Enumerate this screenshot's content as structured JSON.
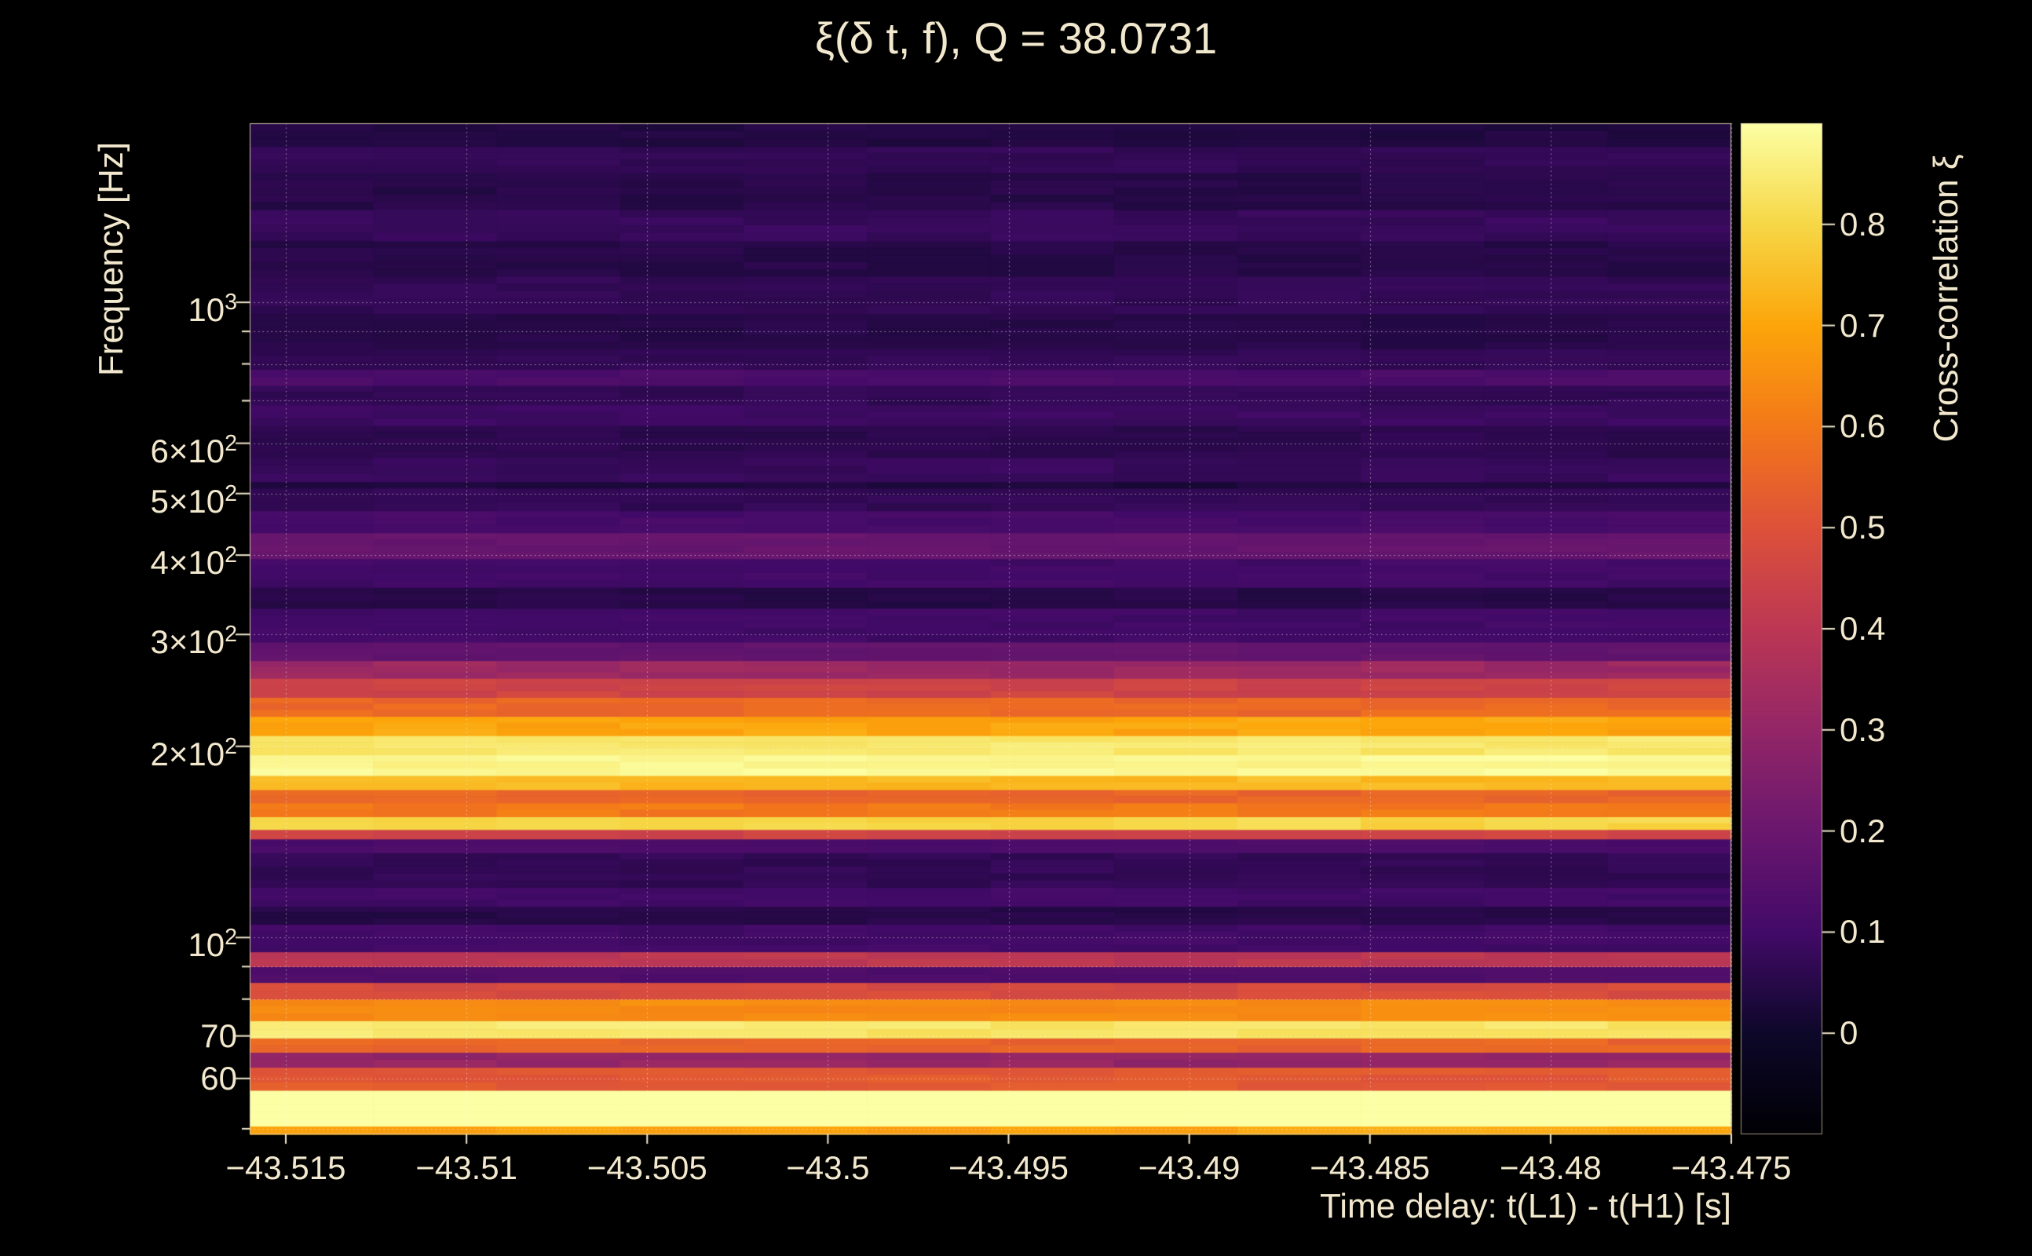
{
  "page": {
    "background": "#000000"
  },
  "colors": {
    "text": "#f2e8cd",
    "grid": "rgba(255,255,255,0.55)",
    "frame": "rgba(222,210,180,0.9)"
  },
  "chart_data": {
    "type": "heatmap",
    "title": "ξ(δ t, f), Q = 38.0731",
    "Q": 38.0731,
    "xlabel": "Time delay: t(L1) - t(H1) [s]",
    "ylabel": "Frequency [Hz]",
    "colorbar_label": "Cross-correlation ξ",
    "x_range": [
      -43.516,
      -43.475
    ],
    "y_range_hz": [
      49,
      1914
    ],
    "y_scale": "log",
    "value_range": [
      -0.1,
      0.9
    ],
    "grid": "dotted",
    "legend_position": "colorbar-right",
    "x_ticks": [
      {
        "value": -43.515,
        "label": "−43.515"
      },
      {
        "value": -43.51,
        "label": "−43.51"
      },
      {
        "value": -43.505,
        "label": "−43.505"
      },
      {
        "value": -43.5,
        "label": "−43.5"
      },
      {
        "value": -43.495,
        "label": "−43.495"
      },
      {
        "value": -43.49,
        "label": "−43.49"
      },
      {
        "value": -43.485,
        "label": "−43.485"
      },
      {
        "value": -43.48,
        "label": "−43.48"
      },
      {
        "value": -43.475,
        "label": "−43.475"
      }
    ],
    "y_ticks": [
      {
        "hz": 1000,
        "main": "10",
        "sup": "3"
      },
      {
        "hz": 600,
        "main": "6×10",
        "sup": "2"
      },
      {
        "hz": 500,
        "main": "5×10",
        "sup": "2"
      },
      {
        "hz": 400,
        "main": "4×10",
        "sup": "2"
      },
      {
        "hz": 300,
        "main": "3×10",
        "sup": "2"
      },
      {
        "hz": 200,
        "main": "2×10",
        "sup": "2"
      },
      {
        "hz": 100,
        "main": "10",
        "sup": "2"
      },
      {
        "hz": 70,
        "main": "70",
        "sup": ""
      },
      {
        "hz": 60,
        "main": "60",
        "sup": ""
      }
    ],
    "grid_hz": [
      50,
      60,
      70,
      80,
      90,
      100,
      200,
      300,
      400,
      500,
      600,
      700,
      800,
      900,
      1000
    ],
    "colorbar_ticks": [
      {
        "value": 0,
        "label": "0"
      },
      {
        "value": 0.1,
        "label": "0.1"
      },
      {
        "value": 0.2,
        "label": "0.2"
      },
      {
        "value": 0.3,
        "label": "0.3"
      },
      {
        "value": 0.4,
        "label": "0.4"
      },
      {
        "value": 0.5,
        "label": "0.5"
      },
      {
        "value": 0.6,
        "label": "0.6"
      },
      {
        "value": 0.7,
        "label": "0.7"
      },
      {
        "value": 0.8,
        "label": "0.8"
      }
    ],
    "colormap": "inferno",
    "colormap_stops": [
      [
        0.0,
        "#000004"
      ],
      [
        0.1,
        "#0d0829"
      ],
      [
        0.2,
        "#420a68"
      ],
      [
        0.3,
        "#6a176e"
      ],
      [
        0.4,
        "#932667"
      ],
      [
        0.5,
        "#bc3754"
      ],
      [
        0.6,
        "#dd513a"
      ],
      [
        0.7,
        "#f37819"
      ],
      [
        0.8,
        "#fca50a"
      ],
      [
        0.9,
        "#f6d746"
      ],
      [
        1.0,
        "#fcffa4"
      ]
    ],
    "bands": [
      {
        "f_lo": 49,
        "f_hi": 50.5,
        "xi": 0.7
      },
      {
        "f_lo": 50.5,
        "f_hi": 57.5,
        "xi": 0.93
      },
      {
        "f_lo": 57.5,
        "f_hi": 62.5,
        "xi": 0.52
      },
      {
        "f_lo": 62.5,
        "f_hi": 66,
        "xi": 0.3
      },
      {
        "f_lo": 66,
        "f_hi": 69.5,
        "xi": 0.55
      },
      {
        "f_lo": 69.5,
        "f_hi": 74,
        "xi": 0.84
      },
      {
        "f_lo": 74,
        "f_hi": 80,
        "xi": 0.64
      },
      {
        "f_lo": 80,
        "f_hi": 85,
        "xi": 0.48
      },
      {
        "f_lo": 85,
        "f_hi": 90,
        "xi": 0.13
      },
      {
        "f_lo": 90,
        "f_hi": 95,
        "xi": 0.4
      },
      {
        "f_lo": 95,
        "f_hi": 105,
        "xi": 0.1
      },
      {
        "f_lo": 105,
        "f_hi": 112,
        "xi": 0.05
      },
      {
        "f_lo": 112,
        "f_hi": 120,
        "xi": 0.1
      },
      {
        "f_lo": 120,
        "f_hi": 136,
        "xi": 0.07
      },
      {
        "f_lo": 136,
        "f_hi": 143,
        "xi": 0.12
      },
      {
        "f_lo": 143,
        "f_hi": 148,
        "xi": 0.45
      },
      {
        "f_lo": 148,
        "f_hi": 155,
        "xi": 0.8
      },
      {
        "f_lo": 155,
        "f_hi": 163,
        "xi": 0.6
      },
      {
        "f_lo": 163,
        "f_hi": 171,
        "xi": 0.55
      },
      {
        "f_lo": 171,
        "f_hi": 180,
        "xi": 0.74
      },
      {
        "f_lo": 180,
        "f_hi": 194,
        "xi": 0.88
      },
      {
        "f_lo": 194,
        "f_hi": 208,
        "xi": 0.84
      },
      {
        "f_lo": 208,
        "f_hi": 223,
        "xi": 0.7
      },
      {
        "f_lo": 223,
        "f_hi": 239,
        "xi": 0.56
      },
      {
        "f_lo": 239,
        "f_hi": 256,
        "xi": 0.45
      },
      {
        "f_lo": 256,
        "f_hi": 273,
        "xi": 0.32
      },
      {
        "f_lo": 273,
        "f_hi": 292,
        "xi": 0.18
      },
      {
        "f_lo": 292,
        "f_hi": 330,
        "xi": 0.1
      },
      {
        "f_lo": 330,
        "f_hi": 356,
        "xi": 0.05
      },
      {
        "f_lo": 356,
        "f_hi": 395,
        "xi": 0.1
      },
      {
        "f_lo": 395,
        "f_hi": 434,
        "xi": 0.19
      },
      {
        "f_lo": 434,
        "f_hi": 470,
        "xi": 0.11
      },
      {
        "f_lo": 470,
        "f_hi": 510,
        "xi": 0.07
      },
      {
        "f_lo": 510,
        "f_hi": 522,
        "xi": 0.03
      },
      {
        "f_lo": 522,
        "f_hi": 570,
        "xi": 0.08
      },
      {
        "f_lo": 570,
        "f_hi": 640,
        "xi": 0.06
      },
      {
        "f_lo": 640,
        "f_hi": 690,
        "xi": 0.09
      },
      {
        "f_lo": 690,
        "f_hi": 740,
        "xi": 0.07
      },
      {
        "f_lo": 740,
        "f_hi": 785,
        "xi": 0.12
      },
      {
        "f_lo": 785,
        "f_hi": 845,
        "xi": 0.07
      },
      {
        "f_lo": 845,
        "f_hi": 960,
        "xi": 0.05
      },
      {
        "f_lo": 960,
        "f_hi": 1100,
        "xi": 0.07
      },
      {
        "f_lo": 1100,
        "f_hi": 1250,
        "xi": 0.05
      },
      {
        "f_lo": 1250,
        "f_hi": 1400,
        "xi": 0.08
      },
      {
        "f_lo": 1400,
        "f_hi": 1600,
        "xi": 0.05
      },
      {
        "f_lo": 1600,
        "f_hi": 1760,
        "xi": 0.07
      },
      {
        "f_lo": 1760,
        "f_hi": 1914,
        "xi": 0.04
      }
    ]
  }
}
